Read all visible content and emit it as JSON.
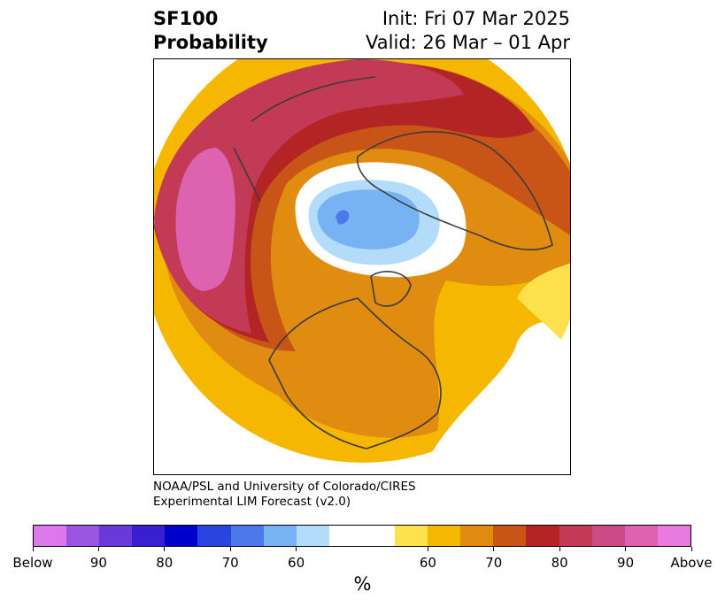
{
  "header": {
    "title_line1": "SF100",
    "title_line2": "Probability",
    "init": "Init: Fri 07 Mar 2025",
    "valid": "Valid: 26 Mar – 01 Apr"
  },
  "credits": {
    "line1": "NOAA/PSL and University of Colorado/CIRES",
    "line2": "Experimental LIM Forecast (v2.0)"
  },
  "colorbar": {
    "colors": [
      "#dd77ee",
      "#9955e0",
      "#6a3ad8",
      "#3a1fd0",
      "#0000cd",
      "#2a44e0",
      "#4d78ea",
      "#77b2f3",
      "#b3dcfb",
      "#ffffff",
      "#ffffff",
      "#ffe14d",
      "#f5b700",
      "#e08c10",
      "#c95418",
      "#b32424",
      "#c33a57",
      "#cc4a85",
      "#dd62b0",
      "#ea7ae0"
    ],
    "tick_labels": [
      "Below",
      "90",
      "80",
      "70",
      "60",
      "60",
      "70",
      "80",
      "90",
      "Above"
    ],
    "label": "%"
  },
  "map": {
    "categories": [
      "Below",
      "Above"
    ],
    "palette": {
      "magenta": "#cc4a85",
      "pink": "#dd62b0",
      "crimson": "#c33a57",
      "red": "#b32424",
      "dark_orange": "#c95418",
      "orange": "#e08c10",
      "gold": "#f5b700",
      "yellow": "#ffe14d",
      "light_blue": "#b3dcfb",
      "mid_blue": "#77b2f3",
      "blue": "#4d78ea",
      "coast": "#3c3c3c"
    }
  }
}
